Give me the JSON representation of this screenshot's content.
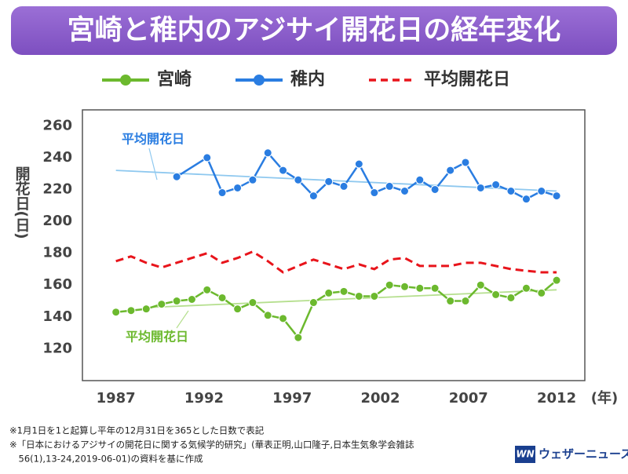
{
  "chart_data": {
    "type": "line",
    "title": "宮崎と稚内のアジサイ開花日の経年変化",
    "ylabel": "開花日(日)",
    "xlabel": "(年)",
    "x": [
      1987,
      1987.86,
      1988.72,
      1989.59,
      1990.45,
      1991.31,
      1992.17,
      1993.03,
      1993.9,
      1994.76,
      1995.62,
      1996.48,
      1997.34,
      1998.21,
      1999.07,
      1999.93,
      2000.79,
      2001.66,
      2002.52,
      2003.38,
      2004.24,
      2005.1,
      2005.97,
      2006.83,
      2007.69,
      2008.55,
      2009.41,
      2010.28,
      2011.14,
      2012
    ],
    "series": [
      {
        "name": "宮崎",
        "color": "#6cb92e",
        "marker": true,
        "dash": false,
        "values": [
          143,
          144,
          145,
          148,
          150,
          151,
          157,
          152,
          145,
          149,
          141,
          139,
          127,
          149,
          155,
          156,
          153,
          153,
          160,
          159,
          158,
          158,
          150,
          150,
          160,
          154,
          152,
          158,
          155,
          163
        ]
      },
      {
        "name": "稚内",
        "color": "#2a7de1",
        "marker": true,
        "dash": false,
        "x": [
          1990.45,
          1992.17,
          1993.03,
          1993.9,
          1994.76,
          1995.62,
          1996.48,
          1997.34,
          1998.21,
          1999.07,
          1999.93,
          2000.79,
          2001.66,
          2002.52,
          2003.38,
          2004.24,
          2005.1,
          2005.97,
          2006.83,
          2007.69,
          2008.55,
          2009.41,
          2010.28,
          2011.14,
          2012
        ],
        "values": [
          228,
          240,
          218,
          221,
          226,
          243,
          232,
          226,
          216,
          225,
          222,
          236,
          218,
          222,
          219,
          226,
          220,
          232,
          237,
          221,
          223,
          219,
          214,
          219,
          216
        ]
      },
      {
        "name": "平均開花日",
        "color": "#e8141b",
        "marker": false,
        "dash": true,
        "values": [
          175,
          178,
          174,
          171,
          174,
          177,
          180,
          174,
          177,
          181,
          175,
          168,
          172,
          176,
          173,
          170,
          173,
          170,
          176,
          177,
          172,
          172,
          172,
          174,
          174,
          172,
          170,
          169,
          168,
          168
        ]
      }
    ],
    "trendlines": [
      {
        "label": "平均開花日",
        "color": "#8ec8ef",
        "x": [
          1987,
          2012
        ],
        "values": [
          232,
          219
        ]
      },
      {
        "label": "平均開花日",
        "color": "#b5df8e",
        "x": [
          1989,
          2012
        ],
        "values": [
          146,
          157
        ]
      }
    ],
    "xlim": [
      1985.1,
      2013.6
    ],
    "ylim": [
      100,
      270
    ],
    "xticks": [
      1987,
      1992,
      1997,
      2002,
      2007,
      2012
    ],
    "yticks": [
      120,
      140,
      160,
      180,
      200,
      220,
      240,
      260
    ]
  },
  "notes": [
    "※1月1日を1と起算し平年の12月31日を365とした日数で表記",
    "※「日本におけるアジサイの開花日に関する気候学的研究」(華表正明,山口隆子,日本生気象学会雑誌",
    "　56(1),13-24,2019-06-01)の資料を基に作成"
  ],
  "logo": {
    "mark": "WN",
    "text": "ウェザーニュース"
  }
}
